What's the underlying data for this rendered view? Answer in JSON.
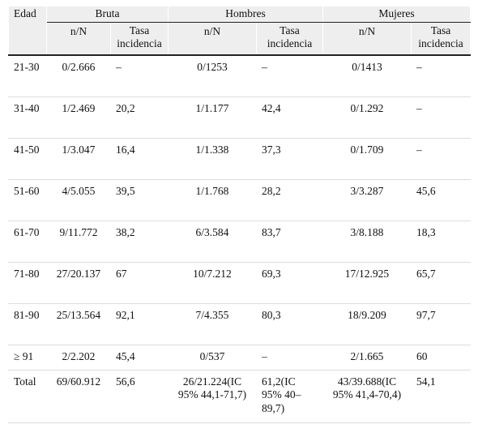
{
  "header": {
    "edad": "Edad",
    "groups": [
      "Bruta",
      "Hombres",
      "Mujeres"
    ],
    "sub": [
      "n/N",
      "Tasa incidencia",
      "n/N",
      "Tasa incidencia",
      "n/N",
      "Tasa incidencia"
    ]
  },
  "rows": [
    {
      "edad": "21-30",
      "cells": [
        "0/2.666",
        "–",
        "0/1253",
        "–",
        "0/1413",
        "–"
      ]
    },
    {
      "edad": "31-40",
      "cells": [
        "1/2.469",
        "20,2",
        "1/1.177",
        "42,4",
        "0/1.292",
        "–"
      ]
    },
    {
      "edad": "41-50",
      "cells": [
        "1/3.047",
        "16,4",
        "1/1.338",
        "37,3",
        "0/1.709",
        "–"
      ]
    },
    {
      "edad": "51-60",
      "cells": [
        "4/5.055",
        "39,5",
        "1/1.768",
        "28,2",
        "3/3.287",
        "45,6"
      ]
    },
    {
      "edad": "61-70",
      "cells": [
        "9/11.772",
        "38,2",
        "6/3.584",
        "83,7",
        "3/8.188",
        "18,3"
      ]
    },
    {
      "edad": "71-80",
      "cells": [
        "27/20.137",
        "67",
        "10/7.212",
        "69,3",
        "17/12.925",
        "65,7"
      ]
    },
    {
      "edad": "81-90",
      "cells": [
        "25/13.564",
        "92,1",
        "7/4.355",
        "80,3",
        "18/9.209",
        "97,7"
      ]
    },
    {
      "edad": "≥ 91",
      "cells": [
        "2/2.202",
        "45,4",
        "0/537",
        "–",
        "2/1.665",
        "60"
      ]
    },
    {
      "edad": "Total",
      "cells": [
        "69/60.912",
        "56,6",
        "26/21.224(IC 95% 44,1-71,7)",
        "61,2(IC 95% 40–89,7)",
        "43/39.688(IC 95% 41,4-70,4)",
        "54,1"
      ]
    }
  ]
}
